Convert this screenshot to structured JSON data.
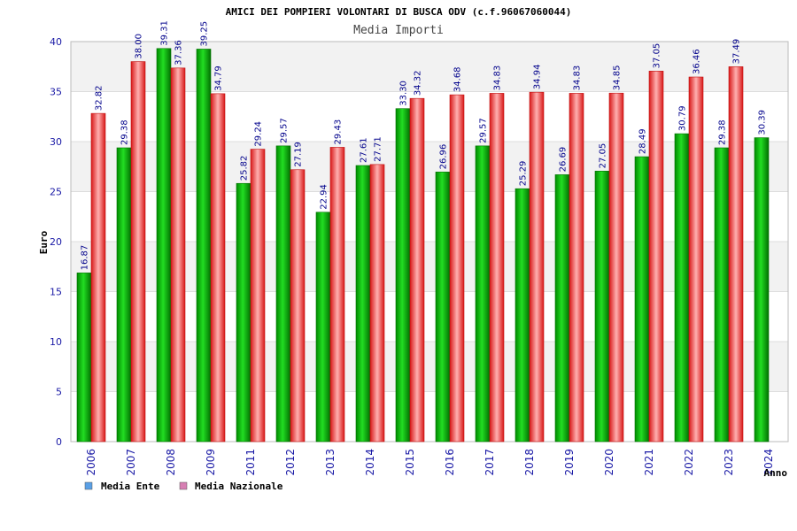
{
  "chart_data": {
    "type": "bar",
    "title": "AMICI DEI POMPIERI VOLONTARI DI BUSCA ODV (c.f.96067060044)",
    "subtitle": "Media Importi",
    "ylabel": "Euro",
    "xlabel": "Anno",
    "ylim": [
      0,
      40
    ],
    "yticks": [
      "0",
      "5",
      "10",
      "15",
      "20",
      "25",
      "30",
      "35",
      "40"
    ],
    "grid": "horizontal bands",
    "legend_position": "bottom-left",
    "categories": [
      "2006",
      "2007",
      "2008",
      "2009",
      "2011",
      "2012",
      "2013",
      "2014",
      "2015",
      "2016",
      "2017",
      "2018",
      "2019",
      "2020",
      "2021",
      "2022",
      "2023",
      "2024"
    ],
    "series": [
      {
        "name": "Media Ente",
        "legend_color": "#5aa0e6",
        "bar_color": "#00b000",
        "values": [
          16.87,
          29.38,
          39.31,
          39.25,
          25.82,
          29.57,
          22.94,
          27.61,
          33.3,
          26.96,
          29.57,
          25.29,
          26.69,
          27.05,
          28.49,
          30.79,
          29.38,
          30.39
        ],
        "labels": [
          "16.87",
          "29.38",
          "39.31",
          "39.25",
          "25.82",
          "29.57",
          "22.94",
          "27.61",
          "33.30",
          "26.96",
          "29.57",
          "25.29",
          "26.69",
          "27.05",
          "28.49",
          "30.79",
          "29.38",
          "30.39"
        ]
      },
      {
        "name": "Media Nazionale",
        "legend_color": "#d77fb3",
        "bar_color": "#e82020",
        "values": [
          32.82,
          38.0,
          37.36,
          34.79,
          29.24,
          27.19,
          29.43,
          27.71,
          34.32,
          34.68,
          34.83,
          34.94,
          34.83,
          34.85,
          37.05,
          36.46,
          37.49,
          null
        ],
        "labels": [
          "32.82",
          "38.00",
          "37.36",
          "34.79",
          "29.24",
          "27.19",
          "29.43",
          "27.71",
          "34.32",
          "34.68",
          "34.83",
          "34.94",
          "34.83",
          "34.85",
          "37.05",
          "36.46",
          "37.49",
          ""
        ]
      }
    ]
  }
}
